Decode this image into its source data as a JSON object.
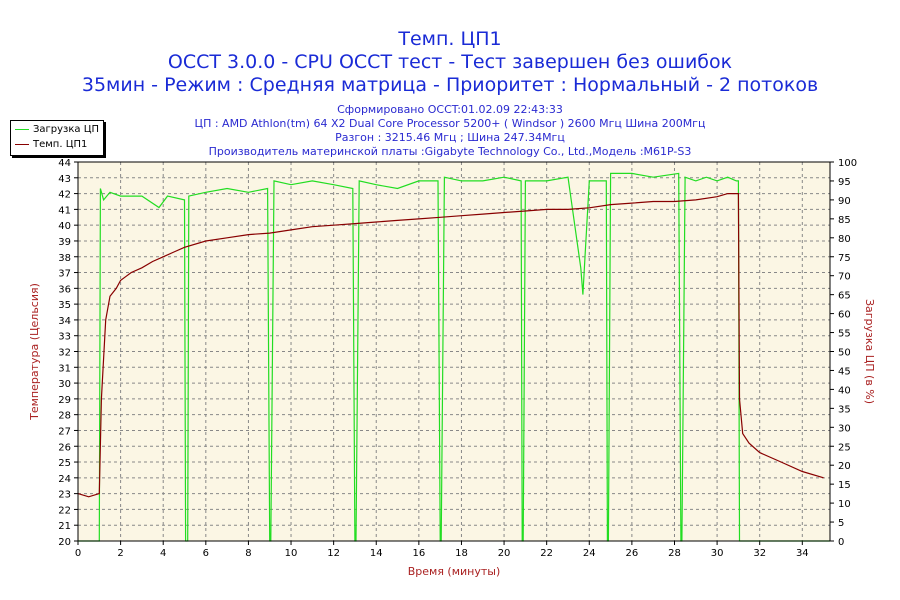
{
  "chart_data": {
    "type": "line",
    "title": "Темп. ЦП1",
    "title_line2": "OCCT 3.0.0 - CPU OCCT тест - Тест завершен без ошибок",
    "title_line3": "35мин - Режим : Средняя матрица - Приоритет : Нормальный - 2 потоков",
    "info_lines": [
      "Сформировано OCCT:01.02.09 22:43:33",
      "ЦП : AMD Athlon(tm) 64 X2 Dual Core Processor 5200+ ( Windsor ) 2600 Мгц Шина 200Мгц",
      "Разгон : 3215.46 Мгц ; Шина 247.34Мгц",
      "Производитель материнской платы :Gigabyte Technology Co., Ltd.,Модель :M61P-S3"
    ],
    "xlabel": "Время (минуты)",
    "ylabel": "Температура (Цельсия)",
    "y2label": "Загрузка ЦП (в %)",
    "xlim": [
      0,
      35.3
    ],
    "ylim": [
      20,
      44
    ],
    "y2lim": [
      0,
      100
    ],
    "x_ticks": [
      0,
      2,
      4,
      6,
      8,
      10,
      12,
      14,
      16,
      18,
      20,
      22,
      24,
      26,
      28,
      30,
      32,
      34
    ],
    "y_ticks": [
      20,
      21,
      22,
      23,
      24,
      25,
      26,
      27,
      28,
      29,
      30,
      31,
      32,
      33,
      34,
      35,
      36,
      37,
      38,
      39,
      40,
      41,
      42,
      43,
      44
    ],
    "y2_ticks": [
      0,
      5,
      10,
      15,
      20,
      25,
      30,
      35,
      40,
      45,
      50,
      55,
      60,
      65,
      70,
      75,
      80,
      85,
      90,
      95,
      100
    ],
    "grid": true,
    "legend_position": "top-left",
    "colors": {
      "load": "#22dd22",
      "temp": "#880000",
      "title": "#1a2bd6",
      "axis_label": "#aa2222",
      "plot_bg": "#fbf6e4",
      "grid": "#888888"
    },
    "series": [
      {
        "name": "Загрузка ЦП",
        "axis": "y2",
        "x": [
          0,
          1.0,
          1.05,
          1.2,
          1.5,
          2,
          3,
          3.8,
          4.2,
          5.0,
          5.05,
          5.15,
          5.2,
          6,
          7,
          8,
          8.9,
          9.0,
          9.05,
          9.2,
          10,
          11,
          12,
          12.9,
          13.0,
          13.05,
          13.2,
          14,
          15,
          16,
          16.9,
          17.0,
          17.05,
          17.2,
          18,
          19,
          20,
          20.8,
          20.85,
          20.9,
          21.0,
          22,
          23,
          23.6,
          23.7,
          23.8,
          24.0,
          24.5,
          24.8,
          24.85,
          24.9,
          25.0,
          26,
          27,
          28.2,
          28.3,
          28.35,
          28.5,
          29,
          29.5,
          30,
          30.5,
          30.9,
          31.0,
          31.05,
          32,
          35.3
        ],
        "values": [
          0,
          0,
          93,
          90,
          92,
          91,
          91,
          88,
          91,
          90,
          0,
          0,
          91,
          92,
          93,
          92,
          93,
          0,
          0,
          95,
          94,
          95,
          94,
          93,
          0,
          0,
          95,
          94,
          93,
          95,
          95,
          0,
          0,
          96,
          95,
          95,
          96,
          95,
          0,
          0,
          95,
          95,
          96,
          72,
          65,
          75,
          95,
          95,
          95,
          0,
          0,
          97,
          97,
          96,
          97,
          0,
          0,
          96,
          95,
          96,
          95,
          96,
          95,
          95,
          0,
          0,
          0
        ]
      },
      {
        "name": "Темп. ЦП1",
        "axis": "y",
        "x": [
          0,
          0.5,
          1.0,
          1.1,
          1.3,
          1.5,
          1.8,
          2,
          2.5,
          3,
          3.5,
          4,
          4.5,
          5,
          6,
          7,
          8,
          9,
          10,
          11,
          12,
          13,
          14,
          15,
          16,
          17,
          18,
          19,
          20,
          21,
          22,
          23,
          24,
          25,
          26,
          27,
          28,
          29,
          30,
          30.5,
          31.0,
          31.05,
          31.2,
          31.5,
          32,
          33,
          34,
          35.0
        ],
        "values": [
          23,
          22.8,
          23,
          29,
          34,
          35.5,
          36,
          36.5,
          37,
          37.3,
          37.7,
          38,
          38.3,
          38.6,
          39,
          39.2,
          39.4,
          39.5,
          39.7,
          39.9,
          40,
          40.1,
          40.2,
          40.3,
          40.4,
          40.5,
          40.6,
          40.7,
          40.8,
          40.9,
          41,
          41,
          41.1,
          41.3,
          41.4,
          41.5,
          41.5,
          41.6,
          41.8,
          42,
          42,
          29,
          26.8,
          26.2,
          25.6,
          25.0,
          24.4,
          24
        ]
      }
    ]
  }
}
